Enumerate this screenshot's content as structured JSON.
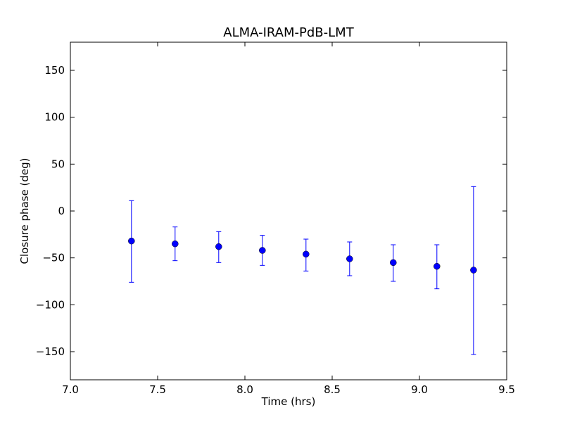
{
  "chart_data": {
    "type": "scatter",
    "title": "ALMA-IRAM-PdB-LMT",
    "xlabel": "Time (hrs)",
    "ylabel": "Closure phase (deg)",
    "xlim": [
      7.0,
      9.5
    ],
    "ylim": [
      -180,
      180
    ],
    "xticks": [
      7.0,
      7.5,
      8.0,
      8.5,
      9.0,
      9.5
    ],
    "xtick_labels": [
      "7.0",
      "7.5",
      "8.0",
      "8.5",
      "9.0",
      "9.5"
    ],
    "yticks": [
      -150,
      -100,
      -50,
      0,
      50,
      100,
      150
    ],
    "ytick_labels": [
      "−150",
      "−100",
      "−50",
      "0",
      "50",
      "100",
      "150"
    ],
    "grid": false,
    "series": [
      {
        "color": "#0000ff",
        "marker": "circle",
        "error_bars": true,
        "points": [
          {
            "x": 7.35,
            "y": -32,
            "yerr_low": -76,
            "yerr_high": 11
          },
          {
            "x": 7.6,
            "y": -35,
            "yerr_low": -53,
            "yerr_high": -17
          },
          {
            "x": 7.85,
            "y": -38,
            "yerr_low": -55,
            "yerr_high": -22
          },
          {
            "x": 8.1,
            "y": -42,
            "yerr_low": -58,
            "yerr_high": -26
          },
          {
            "x": 8.35,
            "y": -46,
            "yerr_low": -64,
            "yerr_high": -30
          },
          {
            "x": 8.6,
            "y": -51,
            "yerr_low": -69,
            "yerr_high": -33
          },
          {
            "x": 8.85,
            "y": -55,
            "yerr_low": -75,
            "yerr_high": -36
          },
          {
            "x": 9.1,
            "y": -59,
            "yerr_low": -83,
            "yerr_high": -36
          },
          {
            "x": 9.31,
            "y": -63,
            "yerr_low": -153,
            "yerr_high": 26
          }
        ]
      }
    ]
  }
}
